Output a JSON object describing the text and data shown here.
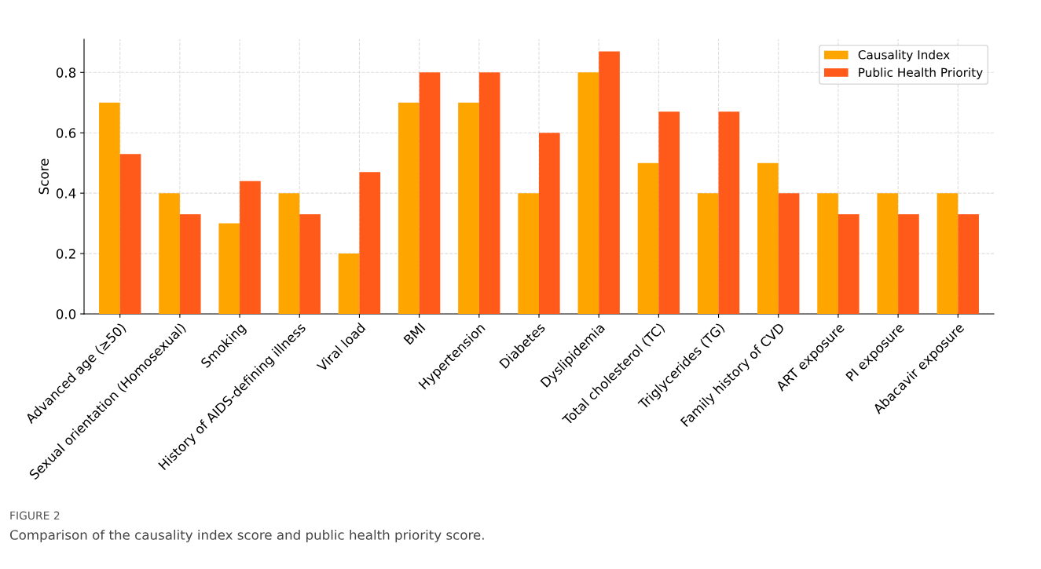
{
  "chart_data": {
    "type": "bar",
    "ylabel": "Score",
    "categories": [
      "Advanced age (≥50)",
      "Sexual orientation (Homosexual)",
      "Smoking",
      "History of AIDS-defining illness",
      "Viral load",
      "BMI",
      "Hypertension",
      "Diabetes",
      "Dyslipidemia",
      "Total cholesterol (TC)",
      "Triglycerides (TG)",
      "Family history of CVD",
      "ART exposure",
      "PI exposure",
      "Abacavir exposure"
    ],
    "series": [
      {
        "name": "Causality Index",
        "color": "#ffa500",
        "values": [
          0.7,
          0.4,
          0.3,
          0.4,
          0.2,
          0.7,
          0.7,
          0.4,
          0.8,
          0.5,
          0.4,
          0.5,
          0.4,
          0.4,
          0.4
        ]
      },
      {
        "name": "Public Health Priority",
        "color": "#ff5a1a",
        "values": [
          0.53,
          0.33,
          0.44,
          0.33,
          0.47,
          0.8,
          0.8,
          0.6,
          0.87,
          0.67,
          0.67,
          0.4,
          0.33,
          0.33,
          0.33
        ]
      }
    ],
    "ylim": [
      0,
      0.91
    ],
    "yticks": [
      {
        "value": 0,
        "label": "0.0"
      },
      {
        "value": 0.2,
        "label": "0.2"
      },
      {
        "value": 0.4,
        "label": "0.4"
      },
      {
        "value": 0.6,
        "label": "0.6"
      },
      {
        "value": 0.8,
        "label": "0.8"
      }
    ],
    "grid": true,
    "legend": "top right",
    "annotations": [
      "FIGURE 2",
      "Comparison of the causality index score and public health priority score."
    ]
  }
}
